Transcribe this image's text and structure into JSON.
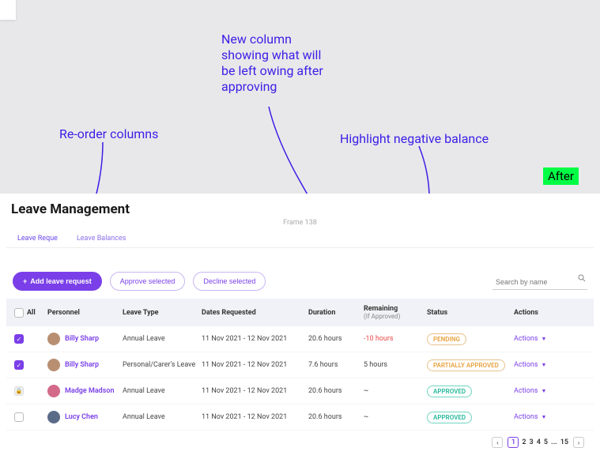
{
  "annotations": {
    "a1": "Re-order columns",
    "a2": "New column\nshowing what will\nbe left owing after\napproving",
    "a3": "Highlight negative balance",
    "after": "After"
  },
  "colors": {
    "annotation": "#3c1ee6",
    "after_bg": "#00ff44",
    "primary": "#7a3fe8",
    "negative": "#e84a4a",
    "pending": "#e8a23f",
    "approved": "#24b89a"
  },
  "page": {
    "title": "Leave Management",
    "frame": "Frame 138",
    "tabs": {
      "t1": "Leave Reque",
      "t2": "Leave Balances"
    },
    "toolbar": {
      "add": "Add leave request",
      "approve": "Approve selected",
      "decline": "Decline selected",
      "search_placeholder": "Search by name"
    },
    "headers": {
      "all": "All",
      "personnel": "Personnel",
      "type": "Leave Type",
      "dates": "Dates Requested",
      "duration": "Duration",
      "remaining": "Remaining",
      "remaining_sub": "(If Approved)",
      "status": "Status",
      "actions": "Actions"
    },
    "rows": [
      {
        "checked": true,
        "lock": false,
        "name": "Billy Sharp",
        "avatar": "#b98f72",
        "type": "Annual Leave",
        "dates": "11 Nov 2021 - 12 Nov 2021",
        "duration": "20.6 hours",
        "remaining": "-10 hours",
        "neg": true,
        "status": "PENDING",
        "badge": "b-pending"
      },
      {
        "checked": true,
        "lock": false,
        "name": "Billy Sharp",
        "avatar": "#b98f72",
        "type": "Personal/Carer's Leave",
        "dates": "11 Nov 2021 - 12 Nov 2021",
        "duration": "7.6 hours",
        "remaining": "5 hours",
        "neg": false,
        "status": "PARTIALLY APPROVED",
        "badge": "b-partial"
      },
      {
        "checked": false,
        "lock": true,
        "name": "Madge Madson",
        "avatar": "#d46a8a",
        "type": "Annual Leave",
        "dates": "11 Nov 2021 - 12 Nov 2021",
        "duration": "20.6 hours",
        "remaining": "~",
        "neg": false,
        "status": "APPROVED",
        "badge": "b-approved"
      },
      {
        "checked": false,
        "lock": false,
        "name": "Lucy Chen",
        "avatar": "#5a6b88",
        "type": "Annual Leave",
        "dates": "11 Nov 2021 - 12 Nov 2021",
        "duration": "20.6 hours",
        "remaining": "~",
        "neg": false,
        "status": "APPROVED",
        "badge": "b-approved"
      }
    ],
    "actions_label": "Actions",
    "pager": {
      "pages": [
        "1",
        "2",
        "3",
        "4",
        "5",
        "...",
        "15"
      ],
      "current": 0
    }
  }
}
